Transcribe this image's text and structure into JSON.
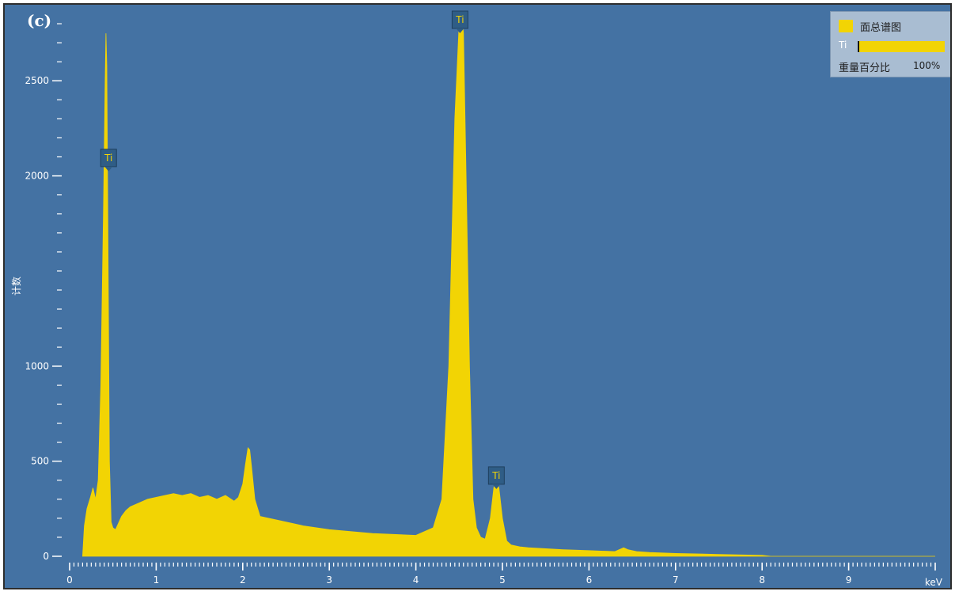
{
  "panel_label": "(c)",
  "legend": {
    "series_name": "面总谱图",
    "element": "Ti",
    "weight_label": "重量百分比",
    "weight_value": "100%",
    "weight_fraction": 1.0
  },
  "colors": {
    "background": "#4472a3",
    "spectrum": "#f2d404",
    "axis": "#ffffff",
    "label_box": "#2f5d86"
  },
  "chart_data": {
    "type": "area",
    "title": "",
    "xlabel": "keV",
    "ylabel": "计数",
    "xlim": [
      0,
      10
    ],
    "ylim": [
      0,
      2850
    ],
    "x_ticks": [
      0,
      1,
      2,
      3,
      4,
      5,
      6,
      7,
      8,
      9
    ],
    "y_ticks": [
      0,
      500,
      1000,
      2000,
      2500
    ],
    "y_minor_step": 100,
    "x_minor_step": 0.05,
    "grid": false,
    "legend_position": "top-right",
    "series": [
      {
        "name": "面总谱图",
        "x": [
          0.15,
          0.17,
          0.2,
          0.24,
          0.27,
          0.3,
          0.33,
          0.36,
          0.39,
          0.41,
          0.42,
          0.43,
          0.44,
          0.45,
          0.46,
          0.48,
          0.5,
          0.53,
          0.56,
          0.6,
          0.65,
          0.7,
          0.8,
          0.9,
          1.0,
          1.1,
          1.2,
          1.3,
          1.4,
          1.5,
          1.6,
          1.7,
          1.8,
          1.9,
          1.95,
          2.0,
          2.03,
          2.06,
          2.08,
          2.1,
          2.14,
          2.2,
          2.3,
          2.4,
          2.5,
          2.7,
          3.0,
          3.5,
          4.0,
          4.2,
          4.3,
          4.38,
          4.45,
          4.5,
          4.53,
          4.55,
          4.58,
          4.62,
          4.66,
          4.7,
          4.75,
          4.8,
          4.86,
          4.9,
          4.93,
          4.96,
          5.0,
          5.05,
          5.1,
          5.2,
          5.3,
          5.5,
          5.7,
          6.0,
          6.3,
          6.4,
          6.45,
          6.55,
          6.7,
          7.0,
          7.5,
          8.0,
          8.1,
          8.5,
          9.0,
          10.0
        ],
        "y": [
          0,
          160,
          250,
          310,
          360,
          300,
          400,
          900,
          1800,
          2500,
          2750,
          2580,
          1900,
          1200,
          500,
          180,
          150,
          140,
          170,
          210,
          240,
          260,
          280,
          300,
          310,
          320,
          330,
          320,
          330,
          310,
          320,
          300,
          320,
          290,
          310,
          380,
          480,
          570,
          560,
          480,
          300,
          210,
          200,
          190,
          180,
          160,
          140,
          120,
          110,
          150,
          300,
          1000,
          2300,
          2800,
          2840,
          2750,
          2000,
          1000,
          300,
          150,
          100,
          90,
          200,
          360,
          400,
          360,
          200,
          80,
          60,
          50,
          45,
          40,
          35,
          30,
          25,
          45,
          35,
          25,
          20,
          15,
          10,
          5,
          0,
          0,
          0,
          0
        ]
      }
    ],
    "annotations": [
      {
        "label": "Ti",
        "x": 0.45,
        "y": 2140
      },
      {
        "label": "Ti",
        "x": 4.51,
        "y": 2880
      },
      {
        "label": "Ti",
        "x": 4.93,
        "y": 470
      }
    ]
  }
}
